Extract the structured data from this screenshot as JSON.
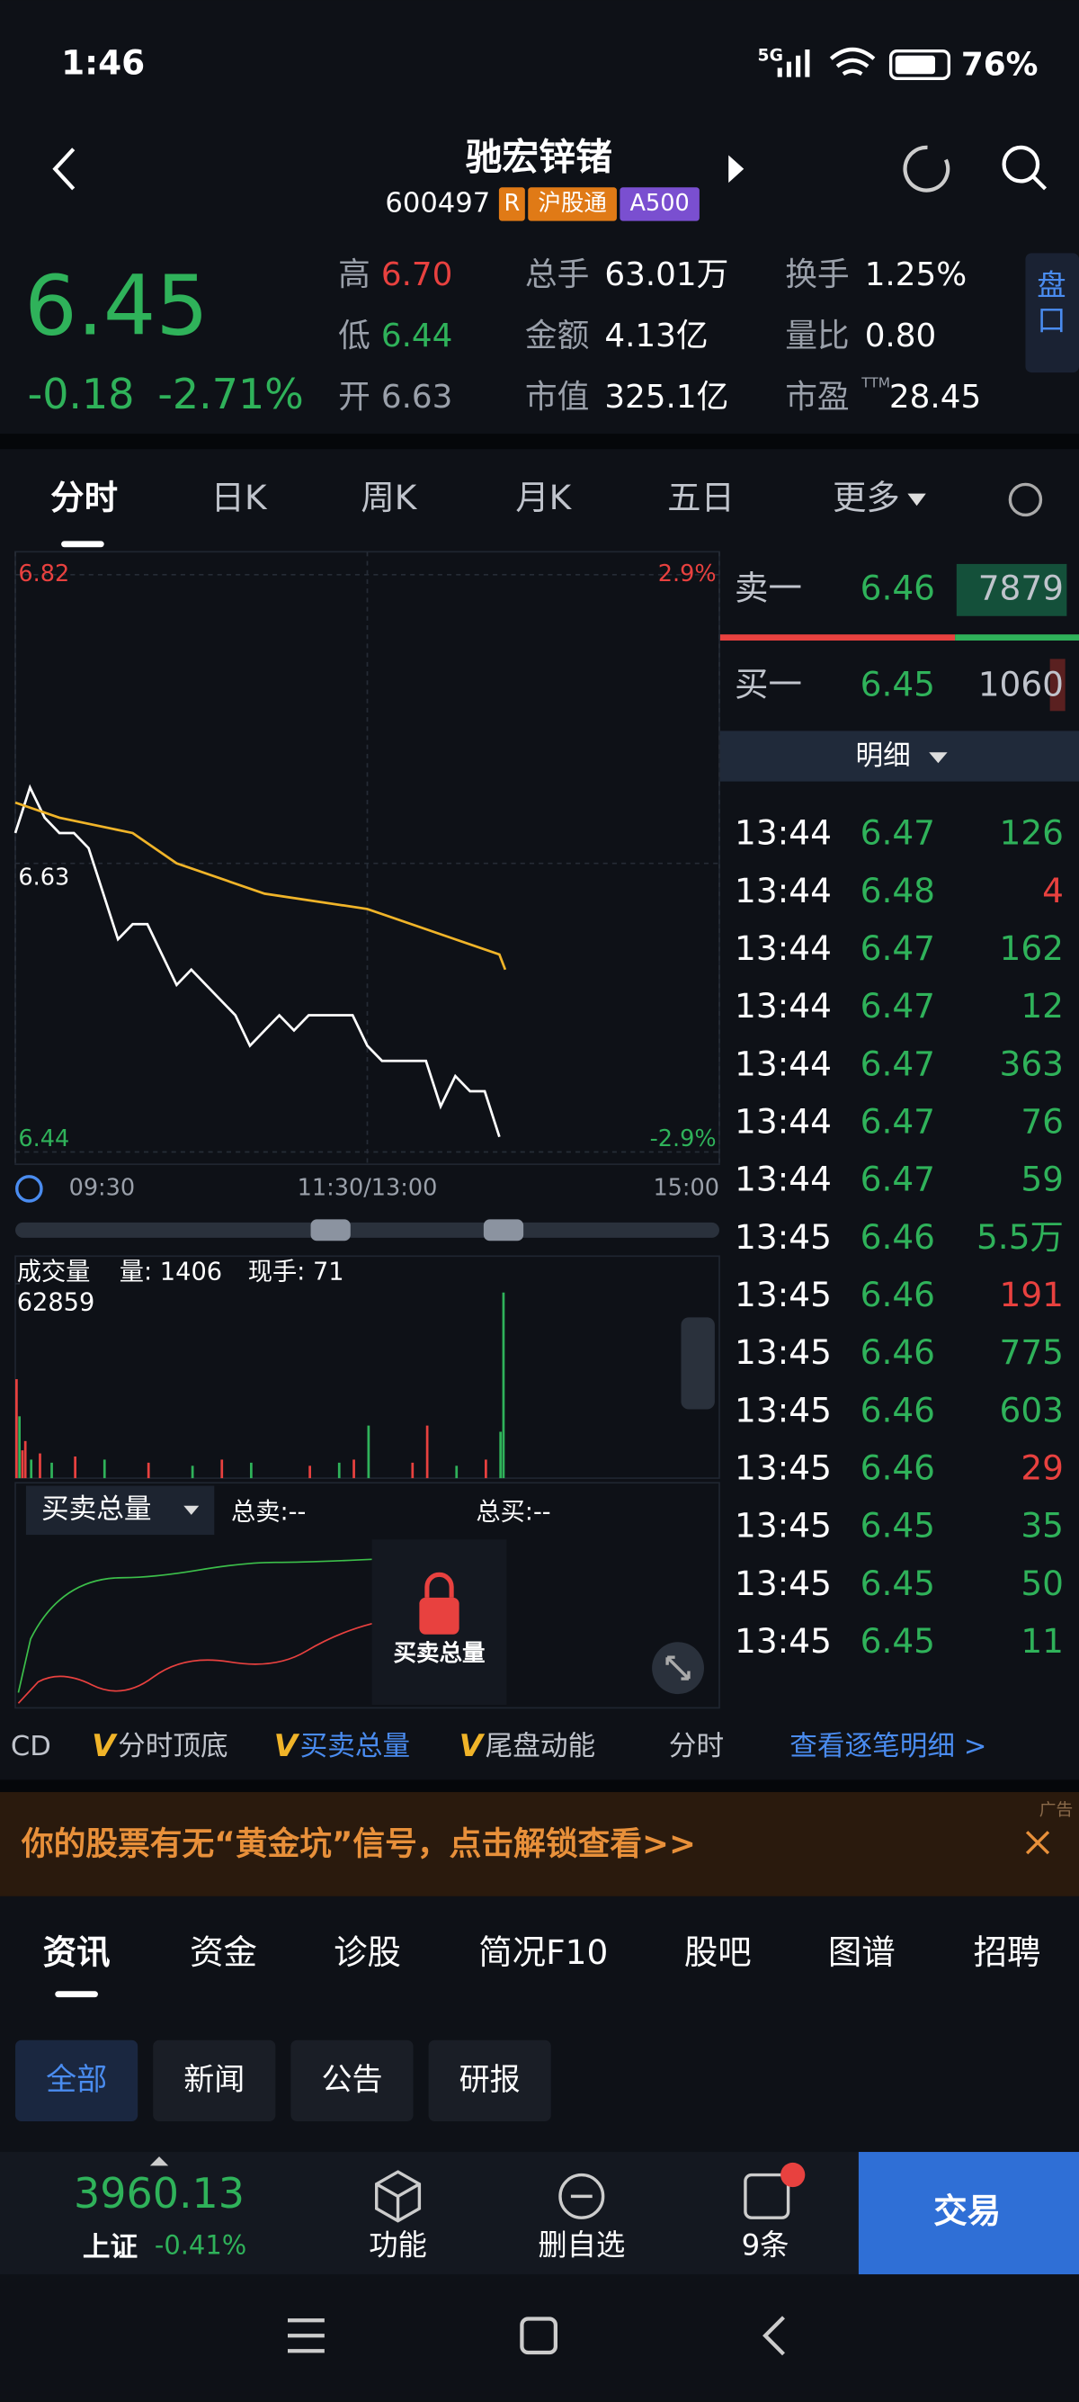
{
  "status_bar": {
    "time": "1:46",
    "network": "5G",
    "battery": "76%"
  },
  "header": {
    "name": "驰宏锌锗",
    "code": "600497",
    "tags": [
      "R",
      "沪股通",
      "A500"
    ]
  },
  "quote": {
    "price": "6.45",
    "change": "-0.18",
    "change_pct": "-2.71%",
    "stats": [
      {
        "label": "高",
        "value": "6.70",
        "color": "#e8413f"
      },
      {
        "label": "低",
        "value": "6.44",
        "color": "#2fb25a"
      },
      {
        "label": "开",
        "value": "6.63",
        "color": "#9aa0aa"
      },
      {
        "label": "总手",
        "value": "63.01万",
        "color": "#ffffff"
      },
      {
        "label": "金额",
        "value": "4.13亿",
        "color": "#ffffff"
      },
      {
        "label": "市值",
        "value": "325.1亿",
        "color": "#ffffff"
      },
      {
        "label": "换手",
        "value": "1.25%",
        "color": "#ffffff"
      },
      {
        "label": "量比",
        "value": "0.80",
        "color": "#ffffff"
      },
      {
        "label": "市盈",
        "sup": "TTM",
        "value": "28.45",
        "color": "#ffffff"
      }
    ],
    "side_button": "盘口"
  },
  "tabs": [
    "分时",
    "日K",
    "周K",
    "月K",
    "五日",
    "更多"
  ],
  "chart_data": [
    {
      "type": "line",
      "xlim": [
        0,
        240
      ],
      "ylim": [
        6.44,
        6.82
      ],
      "yticks": [
        6.44,
        6.63,
        6.82
      ],
      "y2lim": [
        -2.9,
        2.9
      ],
      "y2ticks": [
        {
          "value": -2.9,
          "label": "-2.9%"
        },
        {
          "value": 2.9,
          "label": "2.9%"
        }
      ],
      "xticks": [
        {
          "value": 0,
          "label": "09:30"
        },
        {
          "value": 120,
          "label": "11:30/13:00"
        },
        {
          "value": 240,
          "label": "15:00"
        }
      ],
      "series": [
        {
          "color": "#ffffff",
          "x": [
            0,
            5,
            10,
            15,
            20,
            25,
            30,
            35,
            40,
            45,
            50,
            55,
            60,
            65,
            70,
            75,
            80,
            85,
            90,
            95,
            100,
            105,
            110,
            115,
            120,
            125,
            130,
            135,
            140,
            145,
            150,
            155,
            160,
            165
          ],
          "values": [
            6.65,
            6.68,
            6.66,
            6.65,
            6.65,
            6.64,
            6.61,
            6.58,
            6.59,
            6.59,
            6.57,
            6.55,
            6.56,
            6.55,
            6.54,
            6.53,
            6.51,
            6.52,
            6.53,
            6.52,
            6.53,
            6.53,
            6.53,
            6.53,
            6.51,
            6.5,
            6.5,
            6.5,
            6.5,
            6.47,
            6.49,
            6.48,
            6.48,
            6.45
          ]
        },
        {
          "color": "#f0b429",
          "x": [
            0,
            15,
            40,
            55,
            85,
            120,
            150,
            165,
            167
          ],
          "values": [
            6.67,
            6.66,
            6.65,
            6.63,
            6.61,
            6.6,
            6.58,
            6.57,
            6.56
          ]
        }
      ]
    },
    {
      "type": "bar",
      "title": "成交量",
      "annotations": [
        "量: 1406",
        "现手: 71"
      ],
      "xlim": [
        0,
        240
      ],
      "ylim": [
        0,
        62859
      ],
      "x": [
        0,
        1,
        2,
        3,
        5,
        8,
        12,
        20,
        30,
        45,
        60,
        70,
        80,
        100,
        110,
        115,
        120,
        135,
        140,
        150,
        160,
        165,
        166
      ],
      "values": [
        32000,
        20000,
        9000,
        12000,
        6000,
        8000,
        5000,
        7000,
        6000,
        5000,
        4000,
        6000,
        5000,
        4000,
        5000,
        6000,
        17000,
        5000,
        17000,
        4000,
        6000,
        15000,
        60000
      ],
      "colors": [
        "#e8413f",
        "#2fb25a",
        "#e8413f",
        "#e8413f",
        "#2fb25a",
        "#e8413f",
        "#2fb25a",
        "#e8413f",
        "#2fb25a",
        "#e8413f",
        "#2fb25a",
        "#e8413f",
        "#2fb25a",
        "#e8413f",
        "#2fb25a",
        "#e8413f",
        "#2fb25a",
        "#e8413f",
        "#e8413f",
        "#2fb25a",
        "#e8413f",
        "#2fb25a",
        "#2fb25a"
      ]
    }
  ],
  "order_book": {
    "sell": {
      "label": "卖一",
      "price": "6.46",
      "volume": "7879"
    },
    "buy": {
      "label": "买一",
      "price": "6.45",
      "volume": "1060"
    },
    "detail_label": "明细"
  },
  "trades": [
    {
      "time": "13:44",
      "price": "6.47",
      "volume": "126",
      "color": "#2fb25a"
    },
    {
      "time": "13:44",
      "price": "6.48",
      "volume": "4",
      "color": "#e8413f"
    },
    {
      "time": "13:44",
      "price": "6.47",
      "volume": "162",
      "color": "#2fb25a"
    },
    {
      "time": "13:44",
      "price": "6.47",
      "volume": "12",
      "color": "#2fb25a"
    },
    {
      "time": "13:44",
      "price": "6.47",
      "volume": "363",
      "color": "#2fb25a"
    },
    {
      "time": "13:44",
      "price": "6.47",
      "volume": "76",
      "color": "#2fb25a"
    },
    {
      "time": "13:44",
      "price": "6.47",
      "volume": "59",
      "color": "#2fb25a"
    },
    {
      "time": "13:45",
      "price": "6.46",
      "volume": "5.5万",
      "color": "#2fb25a"
    },
    {
      "time": "13:45",
      "price": "6.46",
      "volume": "191",
      "color": "#e8413f"
    },
    {
      "time": "13:45",
      "price": "6.46",
      "volume": "775",
      "color": "#2fb25a"
    },
    {
      "time": "13:45",
      "price": "6.46",
      "volume": "603",
      "color": "#2fb25a"
    },
    {
      "time": "13:45",
      "price": "6.46",
      "volume": "29",
      "color": "#e8413f"
    },
    {
      "time": "13:45",
      "price": "6.45",
      "volume": "35",
      "color": "#2fb25a"
    },
    {
      "time": "13:45",
      "price": "6.45",
      "volume": "50",
      "color": "#2fb25a"
    },
    {
      "time": "13:45",
      "price": "6.45",
      "volume": "11",
      "color": "#2fb25a"
    }
  ],
  "indicator_panel": {
    "selector": "买卖总量",
    "total_sell": "总卖:--",
    "total_buy": "总买:--",
    "locked_label": "买卖总量"
  },
  "indicator_tabs": [
    "CD",
    "分时顶底",
    "买卖总量",
    "尾盘动能",
    "分时"
  ],
  "detail_link": "查看逐笔明细 >",
  "ad": {
    "text": "你的股票有无“黄金坑”信号，点击解锁查看>>",
    "tag": "广告"
  },
  "news_tabs": [
    "资讯",
    "资金",
    "诊股",
    "简况F10",
    "股吧",
    "图谱",
    "招聘"
  ],
  "news_filters": [
    "全部",
    "新闻",
    "公告",
    "研报"
  ],
  "bottom_bar": {
    "index_value": "3960.13",
    "index_name": "上证",
    "index_change": "-0.41%",
    "buttons": [
      "功能",
      "删自选",
      "9条"
    ],
    "trade": "交易"
  }
}
